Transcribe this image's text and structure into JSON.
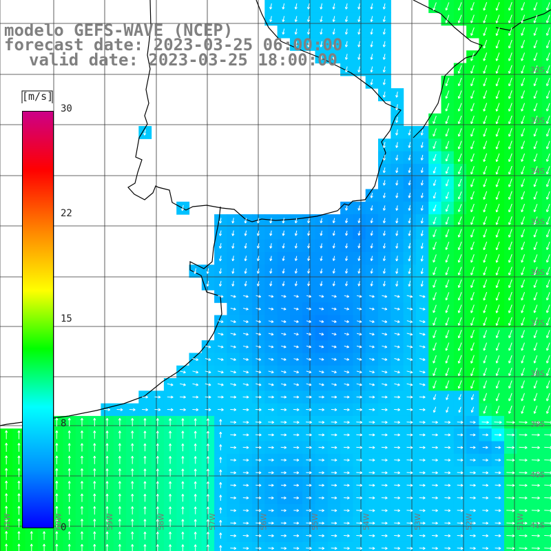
{
  "title": {
    "model_line": "modelo GEFS-WAVE (NCEP)",
    "forecast_line": "forecast date: 2023-03-25 06:00:00",
    "valid_line": "valid date: 2023-03-25 18:00:00"
  },
  "colorbar": {
    "units": "[m/s]",
    "ticks": [
      "30",
      "22",
      "15",
      "8",
      "0"
    ],
    "tick_values": [
      30,
      22,
      15,
      8,
      0
    ],
    "range": [
      0,
      30
    ],
    "colors": [
      "#0000ff",
      "#0090ff",
      "#00ffff",
      "#00ff00",
      "#ffff00",
      "#ff8800",
      "#ff0000",
      "#cc0088"
    ]
  },
  "axes": {
    "latitude_labels": [
      "32S",
      "33S",
      "34S",
      "35S",
      "36S",
      "37S",
      "38S",
      "39S",
      "40S",
      "41S"
    ],
    "longitude_labels": [
      "61W",
      "60W",
      "59W",
      "58W",
      "57W",
      "56W",
      "55W",
      "54W",
      "53W",
      "52W",
      "51W"
    ]
  },
  "colors": {
    "arrow": "#ffffff",
    "grid": "#333333",
    "coast": "#000000",
    "title": "#808080"
  }
}
